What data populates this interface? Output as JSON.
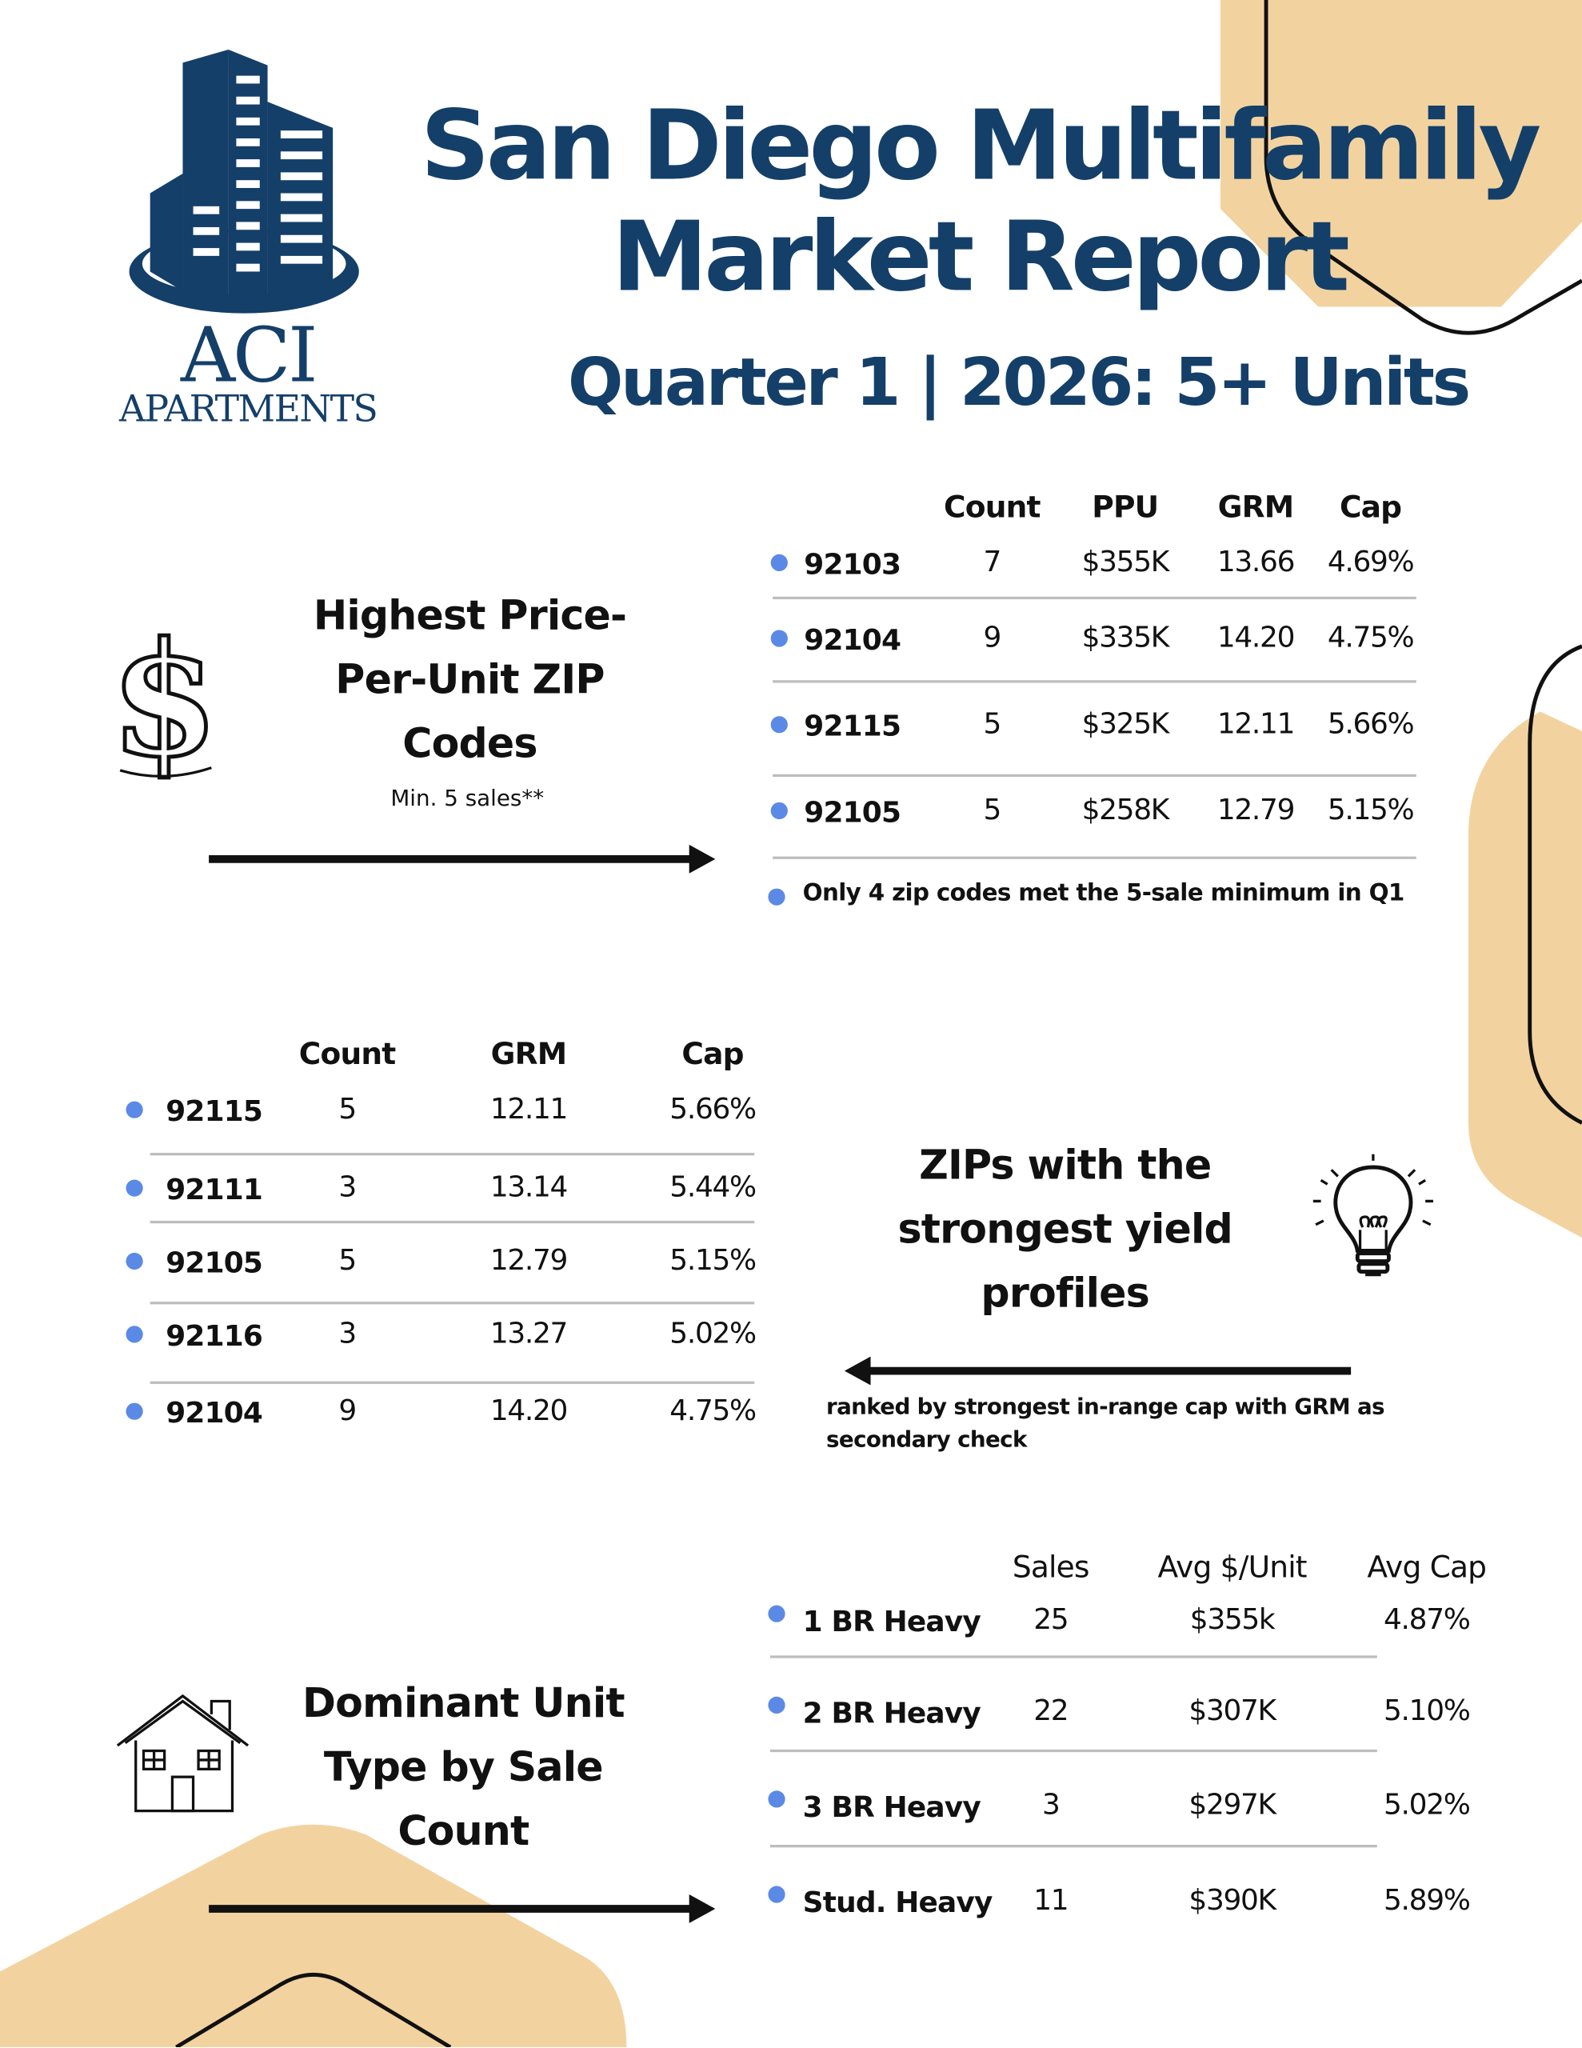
{
  "colors": {
    "navy": "#143f69",
    "beige": "#f2d3a0",
    "bullet": "#5b8ae6"
  },
  "logo": {
    "line1": "ACI",
    "line2": "APARTMENTS"
  },
  "title": {
    "line1": "San Diego Multifamily",
    "line2": "Market Report",
    "subtitle": "Quarter 1 | 2026: 5+ Units"
  },
  "ppu_section": {
    "heading": [
      "Highest Price-",
      "Per-Unit ZIP",
      "Codes"
    ],
    "subheading": "Min. 5 sales**",
    "icon": "dollar-sign-icon",
    "columns": [
      "Count",
      "PPU",
      "GRM",
      "Cap"
    ],
    "rows": [
      [
        "92103",
        "7",
        "$355K",
        "13.66",
        "4.69%"
      ],
      [
        "92104",
        "9",
        "$335K",
        "14.20",
        "4.75%"
      ],
      [
        "92115",
        "5",
        "$325K",
        "12.11",
        "5.66%"
      ],
      [
        "92105",
        "5",
        "$258K",
        "12.79",
        "5.15%"
      ]
    ],
    "note": "Only 4 zip codes met the 5-sale minimum in Q1"
  },
  "yield_section": {
    "heading": [
      "ZIPs with the",
      "strongest yield",
      "profiles"
    ],
    "icon": "lightbulb-icon",
    "columns": [
      "Count",
      "GRM",
      "Cap"
    ],
    "rows": [
      [
        "92115",
        "5",
        "12.11",
        "5.66%"
      ],
      [
        "92111",
        "3",
        "13.14",
        "5.44%"
      ],
      [
        "92105",
        "5",
        "12.79",
        "5.15%"
      ],
      [
        "92116",
        "3",
        "13.27",
        "5.02%"
      ],
      [
        "92104",
        "9",
        "14.20",
        "4.75%"
      ]
    ],
    "note": [
      "ranked by strongest in-range cap with GRM as",
      "secondary check"
    ]
  },
  "unit_section": {
    "heading": [
      "Dominant Unit",
      "Type by Sale",
      "Count"
    ],
    "icon": "house-icon",
    "columns": [
      "Sales",
      "Avg $/Unit",
      "Avg Cap"
    ],
    "rows": [
      [
        "1 BR Heavy",
        "25",
        "$355k",
        "4.87%"
      ],
      [
        "2 BR Heavy",
        "22",
        "$307K",
        "5.10%"
      ],
      [
        "3 BR Heavy",
        "3",
        "$297K",
        "5.02%"
      ],
      [
        "Stud. Heavy",
        "11",
        "$390K",
        "5.89%"
      ]
    ]
  }
}
